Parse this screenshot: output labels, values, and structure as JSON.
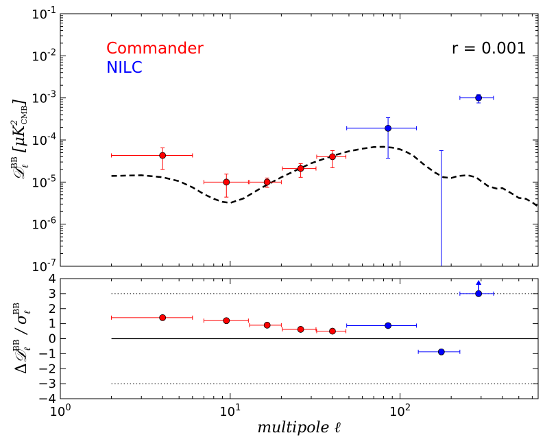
{
  "chart_data": [
    {
      "type": "scatter",
      "panel": "top",
      "ylabel": "D_ℓ^BB [μK²_CMB]",
      "x_scale": "log",
      "y_scale": "log",
      "xlim": [
        1,
        650
      ],
      "ylim": [
        1e-07,
        0.1
      ],
      "x_ticks": [
        1,
        10,
        100
      ],
      "y_ticks": [
        {
          "value": 1e-07,
          "exp": "-7"
        },
        {
          "value": 1e-06,
          "exp": "-6"
        },
        {
          "value": 1e-05,
          "exp": "-5"
        },
        {
          "value": 0.0001,
          "exp": "-4"
        },
        {
          "value": 0.001,
          "exp": "-3"
        },
        {
          "value": 0.01,
          "exp": "-2"
        },
        {
          "value": 0.1,
          "exp": "-1"
        }
      ],
      "legend": [
        {
          "label": "Commander",
          "color": "#ff0000"
        },
        {
          "label": "NILC",
          "color": "#0000ff"
        }
      ],
      "annotation": "r = 0.001",
      "model_curve": {
        "name": "r = 0.001 model",
        "style": "dashed",
        "color": "#000000",
        "x": [
          2,
          3,
          4,
          5,
          6,
          7,
          8,
          9,
          10,
          12,
          15,
          20,
          25,
          30,
          40,
          50,
          60,
          70,
          80,
          90,
          100,
          110,
          120,
          130,
          140,
          160,
          180,
          200,
          220,
          250,
          280,
          300,
          330,
          370,
          400,
          450,
          500,
          550,
          600,
          650
        ],
        "y": [
          1.4e-05,
          1.45e-05,
          1.3e-05,
          1.05e-05,
          7.5e-06,
          5.2e-06,
          4e-06,
          3.4e-06,
          3.2e-06,
          4.1e-06,
          7e-06,
          1.3e-05,
          2e-05,
          2.8e-05,
          4.2e-05,
          5.4e-05,
          6.2e-05,
          6.8e-05,
          6.9e-05,
          6.6e-05,
          6e-05,
          5.1e-05,
          4.2e-05,
          3.2e-05,
          2.5e-05,
          1.7e-05,
          1.3e-05,
          1.25e-05,
          1.4e-05,
          1.45e-05,
          1.3e-05,
          1.05e-05,
          8e-06,
          7e-06,
          7.2e-06,
          5.5e-06,
          4.2e-06,
          4e-06,
          3.3e-06,
          2.6e-06
        ]
      },
      "series": [
        {
          "name": "Commander",
          "color": "#ff0000",
          "points": [
            {
              "x": 4.0,
              "y": 4.3e-05,
              "xerr": [
                2.0,
                6.0
              ],
              "yerr": [
                2e-05,
                6.5e-05
              ]
            },
            {
              "x": 9.5,
              "y": 1e-05,
              "xerr": [
                7.0,
                12.8
              ],
              "yerr": [
                4.4e-06,
                1.55e-05
              ]
            },
            {
              "x": 16.5,
              "y": 1e-05,
              "xerr": [
                13.0,
                20.0
              ],
              "yerr": [
                7.5e-06,
                1.25e-05
              ]
            },
            {
              "x": 26.0,
              "y": 2.1e-05,
              "xerr": [
                20.3,
                32.0
              ],
              "yerr": [
                1.3e-05,
                2.75e-05
              ]
            },
            {
              "x": 40.0,
              "y": 4e-05,
              "xerr": [
                32.3,
                48.0
              ],
              "yerr": [
                2.2e-05,
                5.6e-05
              ]
            }
          ]
        },
        {
          "name": "NILC",
          "color": "#0000ff",
          "points": [
            {
              "x": 85.0,
              "y": 0.00019,
              "xerr": [
                48.5,
                125.0
              ],
              "yerr": [
                3.7e-05,
                0.00034
              ]
            },
            {
              "x": 175.0,
              "y": null,
              "xerr": null,
              "yerr": [
                1e-07,
                5.6e-05
              ]
            },
            {
              "x": 290.0,
              "y": 0.001,
              "xerr": [
                225.0,
                355.0
              ],
              "yerr": [
                0.00076,
                0.0012
              ]
            }
          ]
        }
      ]
    },
    {
      "type": "scatter",
      "panel": "bottom",
      "xlabel": "multipole ℓ",
      "ylabel": "ΔD_ℓ^BB / σ_ℓ^BB",
      "x_scale": "log",
      "xlim": [
        1,
        650
      ],
      "ylim": [
        -4,
        4
      ],
      "x_ticks": [
        {
          "value": 1,
          "exp": "0"
        },
        {
          "value": 10,
          "exp": "1"
        },
        {
          "value": 100,
          "exp": "2"
        }
      ],
      "y_ticks": [
        "-4",
        "-3",
        "-2",
        "-1",
        "0",
        "1",
        "2",
        "3",
        "4"
      ],
      "reference_lines": [
        {
          "y": 3,
          "style": "dotted"
        },
        {
          "y": -3,
          "style": "dotted"
        },
        {
          "y": 0,
          "style": "solid",
          "x_from": 2
        }
      ],
      "series": [
        {
          "name": "Commander",
          "color": "#ff0000",
          "points": [
            {
              "x": 4.0,
              "y": 1.4,
              "xerr": [
                2.0,
                6.0
              ]
            },
            {
              "x": 9.5,
              "y": 1.2,
              "xerr": [
                7.0,
                12.8
              ]
            },
            {
              "x": 16.5,
              "y": 0.9,
              "xerr": [
                13.0,
                20.0
              ]
            },
            {
              "x": 26.0,
              "y": 0.62,
              "xerr": [
                20.3,
                32.0
              ]
            },
            {
              "x": 40.0,
              "y": 0.5,
              "xerr": [
                32.3,
                48.0
              ]
            }
          ]
        },
        {
          "name": "NILC",
          "color": "#0000ff",
          "points": [
            {
              "x": 85.0,
              "y": 0.87,
              "xerr": [
                48.5,
                125.0
              ]
            },
            {
              "x": 175.0,
              "y": -0.88,
              "xerr": [
                128.0,
                225.0
              ]
            },
            {
              "x": 290.0,
              "y": 3.0,
              "xerr": [
                225.0,
                355.0
              ],
              "arrow_up": true
            }
          ]
        }
      ]
    }
  ]
}
